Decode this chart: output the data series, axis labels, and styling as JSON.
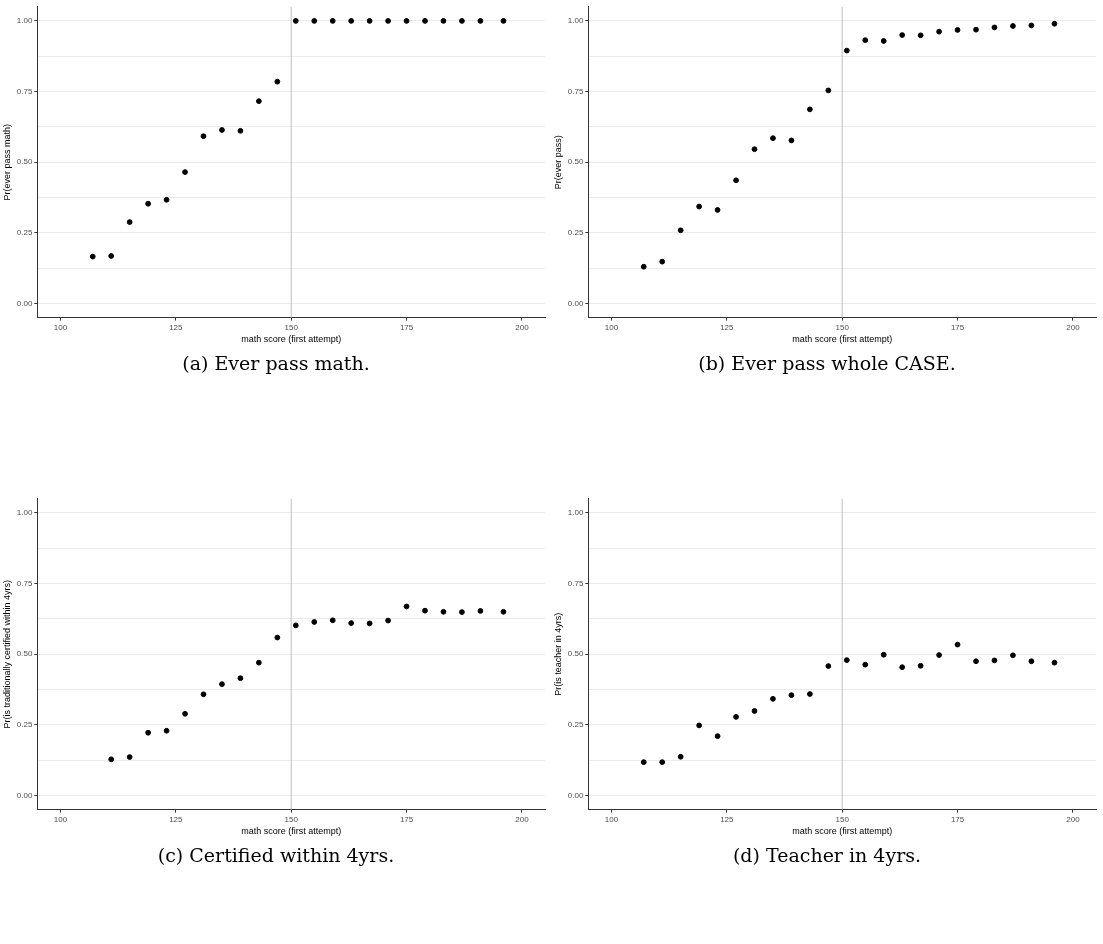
{
  "chart_data": [
    {
      "type": "scatter",
      "xlabel": "math score (first attempt)",
      "ylabel": "Pr(ever pass math)",
      "color": "#000000",
      "marker": "circle",
      "grid": "y",
      "x": [
        107,
        111,
        115,
        119,
        123,
        127,
        131,
        135,
        139,
        143,
        147,
        151,
        155,
        159,
        163,
        167,
        171,
        175,
        179,
        183,
        187,
        191,
        196
      ],
      "values": [
        0.166,
        0.168,
        0.288,
        0.353,
        0.367,
        0.465,
        0.592,
        0.614,
        0.611,
        0.716,
        0.785,
        1.0,
        1.0,
        1.0,
        1.0,
        1.0,
        1.0,
        1.0,
        1.0,
        1.0,
        1.0,
        1.0,
        1.0
      ],
      "xlim": [
        95,
        205
      ],
      "xticks": [
        100,
        125,
        150,
        175,
        200
      ],
      "ylim": [
        -0.05,
        1.05
      ],
      "yticks": [
        {
          "value": 0,
          "label": "0.00"
        },
        {
          "value": 0.125,
          "label": null
        },
        {
          "value": 0.25,
          "label": "0.25"
        },
        {
          "value": 0.375,
          "label": null
        },
        {
          "value": 0.5,
          "label": "0.50"
        },
        {
          "value": 0.625,
          "label": null
        },
        {
          "value": 0.75,
          "label": "0.75"
        },
        {
          "value": 0.875,
          "label": null
        },
        {
          "value": 1,
          "label": "1.00"
        }
      ],
      "ref_lines": [
        {
          "axis": "x",
          "value": 150,
          "color": "#bebebe"
        }
      ],
      "annotations": [
        "(a) Ever pass math."
      ]
    },
    {
      "type": "scatter",
      "xlabel": "math score (first attempt)",
      "ylabel": "Pr(ever pass)",
      "color": "#000000",
      "marker": "circle",
      "grid": "y",
      "x": [
        107,
        111,
        115,
        119,
        123,
        127,
        131,
        135,
        139,
        143,
        147,
        151,
        155,
        159,
        163,
        167,
        171,
        175,
        179,
        183,
        187,
        191,
        196
      ],
      "values": [
        0.13,
        0.148,
        0.259,
        0.343,
        0.331,
        0.436,
        0.546,
        0.585,
        0.577,
        0.687,
        0.754,
        0.895,
        0.932,
        0.929,
        0.95,
        0.949,
        0.962,
        0.968,
        0.969,
        0.977,
        0.982,
        0.984,
        0.99
      ],
      "xlim": [
        95,
        205
      ],
      "xticks": [
        100,
        125,
        150,
        175,
        200
      ],
      "ylim": [
        -0.05,
        1.05
      ],
      "yticks": [
        {
          "value": 0,
          "label": "0.00"
        },
        {
          "value": 0.125,
          "label": null
        },
        {
          "value": 0.25,
          "label": "0.25"
        },
        {
          "value": 0.375,
          "label": null
        },
        {
          "value": 0.5,
          "label": "0.50"
        },
        {
          "value": 0.625,
          "label": null
        },
        {
          "value": 0.75,
          "label": "0.75"
        },
        {
          "value": 0.875,
          "label": null
        },
        {
          "value": 1,
          "label": "1.00"
        }
      ],
      "ref_lines": [
        {
          "axis": "x",
          "value": 150,
          "color": "#bebebe"
        }
      ],
      "annotations": [
        "(b) Ever pass whole CASE."
      ]
    },
    {
      "type": "scatter",
      "xlabel": "math score (first attempt)",
      "ylabel": "Pr(is traditionally certified within 4yrs)",
      "color": "#000000",
      "marker": "circle",
      "grid": "y",
      "x": [
        111,
        115,
        119,
        123,
        127,
        131,
        135,
        139,
        143,
        147,
        151,
        155,
        159,
        163,
        167,
        171,
        175,
        179,
        183,
        187,
        191,
        196
      ],
      "values": [
        0.128,
        0.136,
        0.222,
        0.229,
        0.289,
        0.358,
        0.394,
        0.415,
        0.47,
        0.559,
        0.602,
        0.614,
        0.62,
        0.61,
        0.609,
        0.619,
        0.669,
        0.654,
        0.65,
        0.649,
        0.653,
        0.65
      ],
      "xlim": [
        95,
        205
      ],
      "xticks": [
        100,
        125,
        150,
        175,
        200
      ],
      "ylim": [
        -0.05,
        1.05
      ],
      "yticks": [
        {
          "value": 0,
          "label": "0.00"
        },
        {
          "value": 0.125,
          "label": null
        },
        {
          "value": 0.25,
          "label": "0.25"
        },
        {
          "value": 0.375,
          "label": null
        },
        {
          "value": 0.5,
          "label": "0.50"
        },
        {
          "value": 0.625,
          "label": null
        },
        {
          "value": 0.75,
          "label": "0.75"
        },
        {
          "value": 0.875,
          "label": null
        },
        {
          "value": 1,
          "label": "1.00"
        }
      ],
      "ref_lines": [
        {
          "axis": "x",
          "value": 150,
          "color": "#bebebe"
        }
      ],
      "annotations": [
        "(c) Certified within 4yrs."
      ]
    },
    {
      "type": "scatter",
      "xlabel": "math score (first attempt)",
      "ylabel": "Pr(is teacher in 4yrs)",
      "color": "#000000",
      "marker": "circle",
      "grid": "y",
      "x": [
        107,
        111,
        115,
        119,
        123,
        127,
        131,
        135,
        139,
        143,
        147,
        151,
        155,
        159,
        163,
        167,
        171,
        175,
        179,
        183,
        187,
        191,
        196
      ],
      "values": [
        0.118,
        0.118,
        0.137,
        0.248,
        0.21,
        0.278,
        0.299,
        0.342,
        0.355,
        0.359,
        0.458,
        0.479,
        0.463,
        0.498,
        0.454,
        0.459,
        0.497,
        0.534,
        0.475,
        0.478,
        0.496,
        0.475,
        0.47
      ],
      "xlim": [
        95,
        205
      ],
      "xticks": [
        100,
        125,
        150,
        175,
        200
      ],
      "ylim": [
        -0.05,
        1.05
      ],
      "yticks": [
        {
          "value": 0,
          "label": "0.00"
        },
        {
          "value": 0.125,
          "label": null
        },
        {
          "value": 0.25,
          "label": "0.25"
        },
        {
          "value": 0.375,
          "label": null
        },
        {
          "value": 0.5,
          "label": "0.50"
        },
        {
          "value": 0.625,
          "label": null
        },
        {
          "value": 0.75,
          "label": "0.75"
        },
        {
          "value": 0.875,
          "label": null
        },
        {
          "value": 1,
          "label": "1.00"
        }
      ],
      "ref_lines": [
        {
          "axis": "x",
          "value": 150,
          "color": "#bebebe"
        }
      ],
      "annotations": [
        "(d) Teacher in 4yrs."
      ]
    }
  ]
}
